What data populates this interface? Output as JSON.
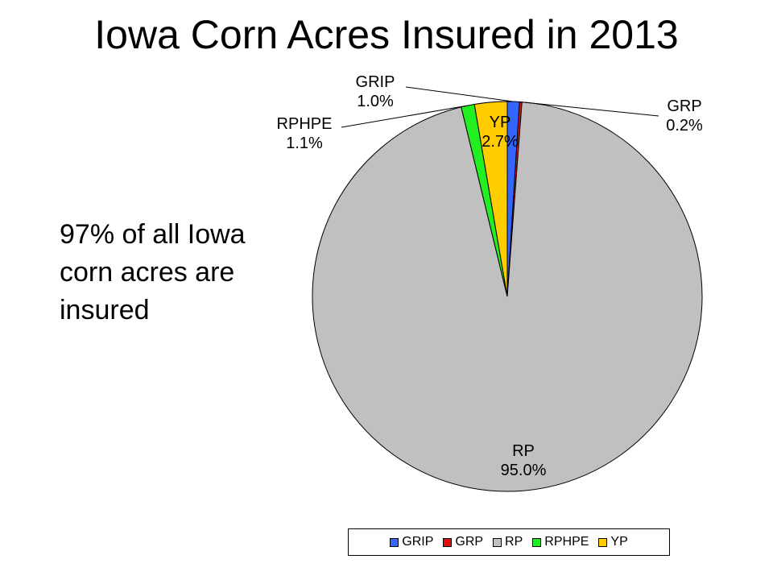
{
  "title": "Iowa Corn Acres Insured in 2013",
  "note": {
    "lines": [
      "97% of all Iowa",
      "corn acres are",
      "insured"
    ]
  },
  "chart_data": {
    "type": "pie",
    "title": "Iowa Corn Acres Insured in 2013",
    "slices": [
      {
        "name": "GRIP",
        "value": 1.0,
        "label": "1.0%",
        "color": "#3366ff"
      },
      {
        "name": "GRP",
        "value": 0.2,
        "label": "0.2%",
        "color": "#e01010"
      },
      {
        "name": "RP",
        "value": 95.0,
        "label": "95.0%",
        "color": "#c0c0c0"
      },
      {
        "name": "RPHPE",
        "value": 1.1,
        "label": "1.1%",
        "color": "#22ee22"
      },
      {
        "name": "YP",
        "value": 2.7,
        "label": "2.7%",
        "color": "#ffcc00"
      }
    ],
    "legend": {
      "position": "bottom",
      "entries": [
        "GRIP",
        "GRP",
        "RP",
        "RPHPE",
        "YP"
      ]
    }
  }
}
